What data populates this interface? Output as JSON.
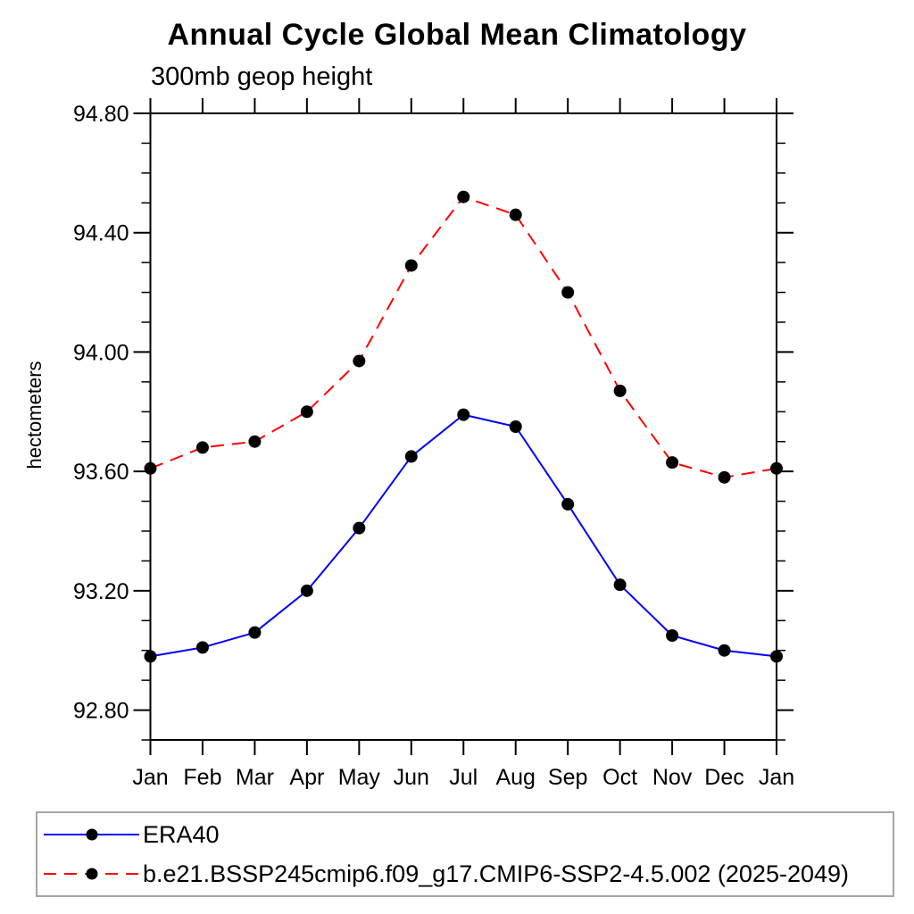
{
  "page": {
    "background": "#ffffff",
    "axis_color": "#000000",
    "legend_border_color": "#a6a6a6"
  },
  "chart_data": {
    "type": "line",
    "title": "Annual Cycle Global Mean Climatology",
    "subtitle": "300mb geop height",
    "ylabel": "hectometers",
    "xlabel": "",
    "categories": [
      "Jan",
      "Feb",
      "Mar",
      "Apr",
      "May",
      "Jun",
      "Jul",
      "Aug",
      "Sep",
      "Oct",
      "Nov",
      "Dec",
      "Jan"
    ],
    "ylim": [
      92.7,
      94.8
    ],
    "y_ticks": [
      {
        "value": 94.8,
        "label": "94.80"
      },
      {
        "value": 94.4,
        "label": "94.40"
      },
      {
        "value": 94.0,
        "label": "94.00"
      },
      {
        "value": 93.6,
        "label": "93.60"
      },
      {
        "value": 93.2,
        "label": "93.20"
      },
      {
        "value": 92.8,
        "label": "92.80"
      }
    ],
    "y_minor_step": 0.1,
    "grid": false,
    "legend_position": "bottom",
    "marker": "filled-circle",
    "marker_color": "#000000",
    "series": [
      {
        "name": "ERA40",
        "color": "#0000ff",
        "style": "solid",
        "values": [
          92.98,
          93.01,
          93.06,
          93.2,
          93.41,
          93.65,
          93.79,
          93.75,
          93.49,
          93.22,
          93.05,
          93.0,
          92.98
        ]
      },
      {
        "name": "b.e21.BSSP245cmip6.f09_g17.CMIP6-SSP2-4.5.002 (2025-2049)",
        "color": "#ff0000",
        "style": "dashed",
        "values": [
          93.61,
          93.68,
          93.7,
          93.8,
          93.97,
          94.29,
          94.52,
          94.46,
          94.2,
          93.87,
          93.63,
          93.58,
          93.61
        ]
      }
    ]
  }
}
